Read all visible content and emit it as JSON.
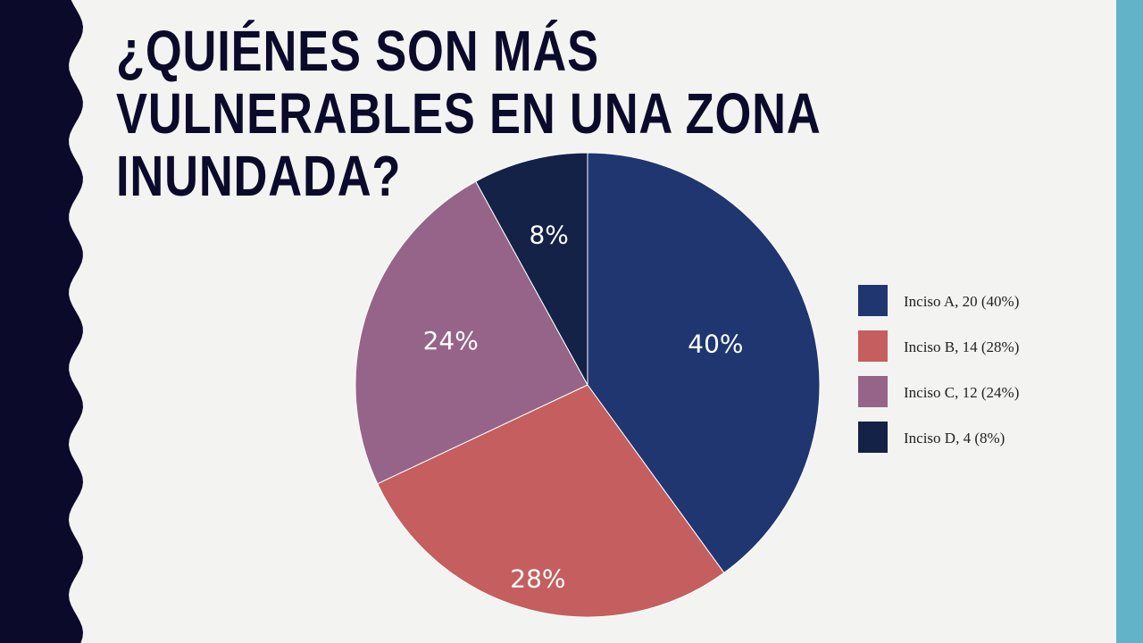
{
  "slide": {
    "title": "¿Quiénes son más vulnerables en una zona inundada?"
  },
  "colors": {
    "left_band": "#0b0a2b",
    "right_stripe": "#62b3c8",
    "background": "#f3f3f1"
  },
  "chart_data": {
    "type": "pie",
    "title": "",
    "legend_position": "right",
    "start_angle_deg": 0,
    "direction": "clockwise",
    "slices": [
      {
        "label": "Inciso A",
        "value": 20,
        "percent_label": "40%",
        "legend": "Inciso A, 20 (40%)",
        "color": "#1f3670",
        "text_color": "#ffffff"
      },
      {
        "label": "Inciso B",
        "value": 14,
        "percent_label": "28%",
        "legend": "Inciso B, 14 (28%)",
        "color": "#c55e5e",
        "text_color": "#ffffff"
      },
      {
        "label": "Inciso C",
        "value": 12,
        "percent_label": "24%",
        "legend": "Inciso C, 12 (24%)",
        "color": "#966488",
        "text_color": "#ffffff"
      },
      {
        "label": "Inciso D",
        "value": 4,
        "percent_label": "8%",
        "legend": "Inciso D, 4 (8%)",
        "color": "#132246",
        "text_color": "#ffffff"
      }
    ]
  }
}
